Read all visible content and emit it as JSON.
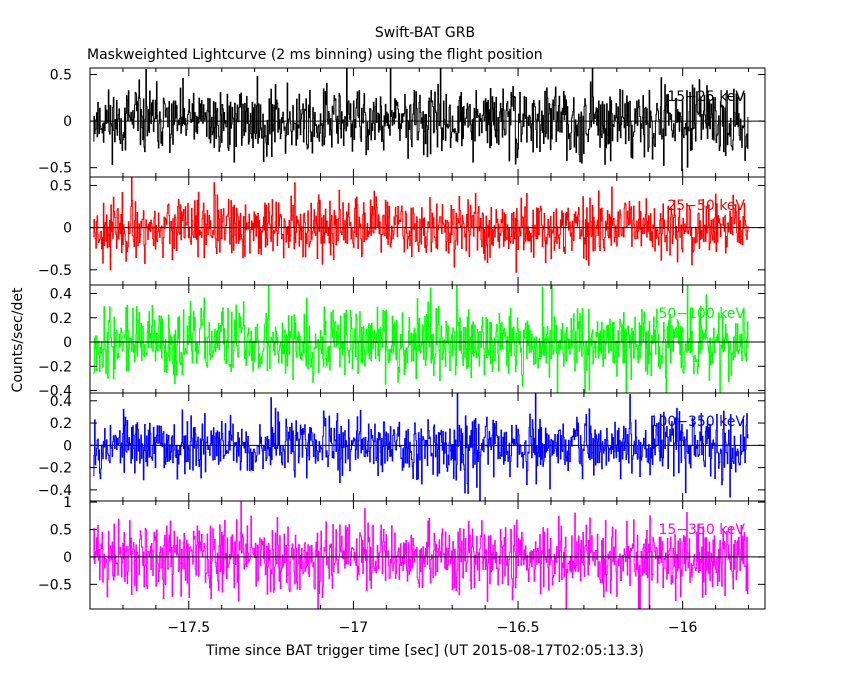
{
  "title": "Swift-BAT GRB",
  "subtitle": "Maskweighted Lightcurve (2 ms binning) using the flight position",
  "ylabel": "Counts/sec/det",
  "xlabel": "Time since BAT trigger time [sec] (UT 2015-08-17T02:05:13.3)",
  "chart_data": [
    {
      "type": "line",
      "name": "15-25 keV",
      "label": "15−25 keV",
      "color": "#000000",
      "xlim": [
        -17.8,
        -15.75
      ],
      "ylim": [
        -0.6,
        0.57
      ],
      "yticks": [
        -0.5,
        0,
        0.5
      ],
      "yticklabels": [
        "−0.5",
        "0",
        "0.5"
      ],
      "amplitude": 0.17,
      "seed": 11
    },
    {
      "type": "line",
      "name": "25-50 keV",
      "label": "25−50 keV",
      "color": "#ff0000",
      "xlim": [
        -17.8,
        -15.75
      ],
      "ylim": [
        -0.68,
        0.6
      ],
      "yticks": [
        -0.5,
        0,
        0.5
      ],
      "yticklabels": [
        "−0.5",
        "0",
        "0.5"
      ],
      "amplitude": 0.17,
      "seed": 23
    },
    {
      "type": "line",
      "name": "50-100 keV",
      "label": "50−100 keV",
      "color": "#00ff00",
      "xlim": [
        -17.8,
        -15.75
      ],
      "ylim": [
        -0.42,
        0.47
      ],
      "yticks": [
        -0.4,
        -0.2,
        0,
        0.2,
        0.4
      ],
      "yticklabels": [
        "−0.4",
        "−0.2",
        "0",
        "0.2",
        "0.4"
      ],
      "amplitude": 0.14,
      "seed": 37
    },
    {
      "type": "line",
      "name": "100-350 keV",
      "label": "100−350 keV",
      "color": "#0000ff",
      "xlim": [
        -17.8,
        -15.75
      ],
      "ylim": [
        -0.5,
        0.47
      ],
      "yticks": [
        -0.4,
        -0.2,
        0,
        0.2,
        0.4
      ],
      "yticklabels": [
        "−0.4",
        "−0.2",
        "0",
        "0.2",
        "0.4"
      ],
      "amplitude": 0.13,
      "seed": 53
    },
    {
      "type": "line",
      "name": "15-350 keV",
      "label": "15−350 keV",
      "color": "#ff00ff",
      "xlim": [
        -17.8,
        -15.75
      ],
      "ylim": [
        -0.95,
        1.02
      ],
      "yticks": [
        -0.5,
        0,
        0.5,
        1
      ],
      "yticklabels": [
        "−0.5",
        "0",
        "0.5",
        "1"
      ],
      "amplitude": 0.3,
      "seed": 71
    }
  ],
  "xaxis": {
    "xlim": [
      -17.8,
      -15.75
    ],
    "ticks": [
      -17.5,
      -17,
      -16.5,
      -16
    ],
    "ticklabels": [
      "−17.5",
      "−17",
      "−16.5",
      "−16"
    ],
    "minor_step": 0.1,
    "data_range": [
      -17.79,
      -15.8
    ]
  }
}
